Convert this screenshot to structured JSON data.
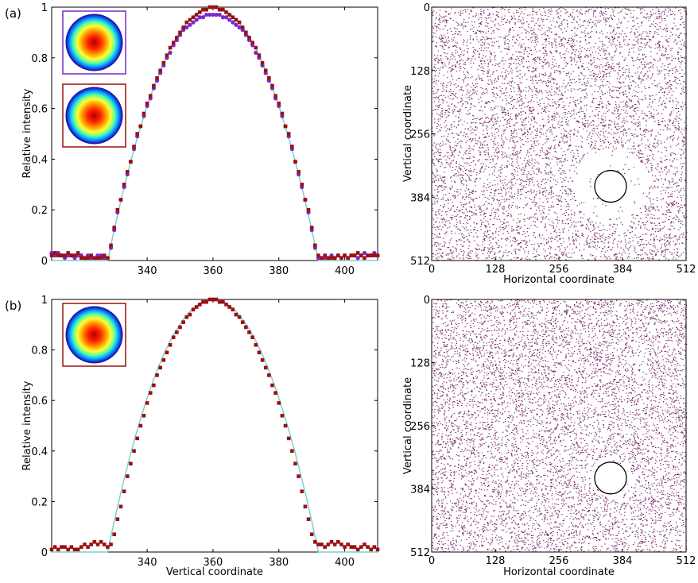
{
  "figure": {
    "panel_labels": [
      "(a)",
      "(b)"
    ]
  },
  "colors": {
    "fit_line": "#7fd0cc",
    "series_square": "#9c1010",
    "series_circle": "#7a28c8",
    "inset_frame_a1": "#7a28c8",
    "inset_frame_red": "#9c1010",
    "speckle": "#7a2a6e"
  },
  "chart_data": [
    {
      "id": "profile-a",
      "type": "scatter",
      "panel": "(a)",
      "xlabel": "",
      "ylabel": "Relative intensity",
      "xlim": [
        311,
        410
      ],
      "ylim": [
        0,
        1
      ],
      "xticks": [
        340,
        360,
        380,
        400
      ],
      "yticks": [
        0,
        0.2,
        0.4,
        0.6,
        0.8,
        1
      ],
      "fit": {
        "type": "line",
        "center": 360,
        "half_width": 32,
        "peak": 1.0
      },
      "series": [
        {
          "marker": "square",
          "color": "#9c1010",
          "x": [
            311,
            312,
            313,
            314,
            315,
            316,
            317,
            318,
            319,
            320,
            321,
            322,
            323,
            324,
            325,
            326,
            327,
            328,
            329,
            330,
            331,
            332,
            333,
            334,
            335,
            336,
            337,
            338,
            339,
            340,
            341,
            342,
            343,
            344,
            345,
            346,
            347,
            348,
            349,
            350,
            351,
            352,
            353,
            354,
            355,
            356,
            357,
            358,
            359,
            360,
            361,
            362,
            363,
            364,
            365,
            366,
            367,
            368,
            369,
            370,
            371,
            372,
            373,
            374,
            375,
            376,
            377,
            378,
            379,
            380,
            381,
            382,
            383,
            384,
            385,
            386,
            387,
            388,
            389,
            390,
            391,
            392,
            393,
            394,
            395,
            396,
            397,
            398,
            399,
            400,
            401,
            402,
            403,
            404,
            405,
            406,
            407,
            408,
            409,
            410
          ],
          "y": [
            0.02,
            0.03,
            0.02,
            0.02,
            0.02,
            0.03,
            0.02,
            0.02,
            0.03,
            0.01,
            0.01,
            0.01,
            0.02,
            0.01,
            0.01,
            0.01,
            0.02,
            0.01,
            0.06,
            0.13,
            0.2,
            0.24,
            0.3,
            0.35,
            0.39,
            0.45,
            0.5,
            0.53,
            0.58,
            0.62,
            0.65,
            0.69,
            0.72,
            0.75,
            0.78,
            0.81,
            0.84,
            0.86,
            0.88,
            0.9,
            0.92,
            0.94,
            0.95,
            0.96,
            0.97,
            0.98,
            0.99,
            0.99,
            1.0,
            1.0,
            1.0,
            0.99,
            0.99,
            0.98,
            0.97,
            0.96,
            0.95,
            0.94,
            0.92,
            0.9,
            0.88,
            0.86,
            0.84,
            0.81,
            0.78,
            0.75,
            0.72,
            0.69,
            0.65,
            0.62,
            0.58,
            0.53,
            0.5,
            0.45,
            0.39,
            0.35,
            0.3,
            0.24,
            0.2,
            0.13,
            0.06,
            0.02,
            0.01,
            0.02,
            0.01,
            0.01,
            0.01,
            0.02,
            0.01,
            0.02,
            0.01,
            0.02,
            0.02,
            0.03,
            0.02,
            0.01,
            0.02,
            0.02,
            0.02,
            0.02
          ]
        },
        {
          "marker": "circle",
          "color": "#7a28c8",
          "x": [
            311,
            312,
            313,
            314,
            315,
            316,
            317,
            318,
            319,
            320,
            321,
            322,
            323,
            324,
            325,
            326,
            327,
            328,
            329,
            330,
            331,
            332,
            333,
            334,
            335,
            336,
            337,
            338,
            339,
            340,
            341,
            342,
            343,
            344,
            345,
            346,
            347,
            348,
            349,
            350,
            351,
            352,
            353,
            354,
            355,
            356,
            357,
            358,
            359,
            360,
            361,
            362,
            363,
            364,
            365,
            366,
            367,
            368,
            369,
            370,
            371,
            372,
            373,
            374,
            375,
            376,
            377,
            378,
            379,
            380,
            381,
            382,
            383,
            384,
            385,
            386,
            387,
            388,
            389,
            390,
            391,
            392,
            393,
            394,
            395,
            396,
            397,
            398,
            399,
            400,
            401,
            402,
            403,
            404,
            405,
            406,
            407,
            408,
            409,
            410
          ],
          "y": [
            0.03,
            0.02,
            0.03,
            0.02,
            0.01,
            0.02,
            0.02,
            0.01,
            0.02,
            0.02,
            0.01,
            0.02,
            0.01,
            0.01,
            0.02,
            0.02,
            0.01,
            0.01,
            0.05,
            0.12,
            0.19,
            0.24,
            0.29,
            0.34,
            0.39,
            0.44,
            0.49,
            0.53,
            0.57,
            0.61,
            0.64,
            0.68,
            0.71,
            0.74,
            0.77,
            0.8,
            0.82,
            0.85,
            0.87,
            0.89,
            0.91,
            0.92,
            0.93,
            0.94,
            0.95,
            0.96,
            0.96,
            0.97,
            0.97,
            0.97,
            0.97,
            0.97,
            0.96,
            0.96,
            0.95,
            0.94,
            0.93,
            0.92,
            0.91,
            0.89,
            0.87,
            0.85,
            0.82,
            0.8,
            0.77,
            0.74,
            0.71,
            0.68,
            0.64,
            0.61,
            0.57,
            0.53,
            0.49,
            0.44,
            0.39,
            0.34,
            0.29,
            0.24,
            0.19,
            0.12,
            0.05,
            0.01,
            0.01,
            0.01,
            0.01,
            0.02,
            0.01,
            0.02,
            0.01,
            0.02,
            0.01,
            0.02,
            0.02,
            0.01,
            0.02,
            0.03,
            0.02,
            0.02,
            0.03,
            0.02
          ]
        }
      ]
    },
    {
      "id": "profile-b",
      "type": "scatter",
      "panel": "(b)",
      "xlabel": "Vertical coordinate",
      "ylabel": "Relative intensity",
      "xlim": [
        311,
        410
      ],
      "ylim": [
        0,
        1
      ],
      "xticks": [
        340,
        360,
        380,
        400
      ],
      "yticks": [
        0,
        0.2,
        0.4,
        0.6,
        0.8,
        1
      ],
      "fit": {
        "type": "line",
        "center": 360,
        "half_width": 32,
        "peak": 1.0
      },
      "series": [
        {
          "marker": "square",
          "color": "#9c1010",
          "x": [
            311,
            312,
            313,
            314,
            315,
            316,
            317,
            318,
            319,
            320,
            321,
            322,
            323,
            324,
            325,
            326,
            327,
            328,
            329,
            330,
            331,
            332,
            333,
            334,
            335,
            336,
            337,
            338,
            339,
            340,
            341,
            342,
            343,
            344,
            345,
            346,
            347,
            348,
            349,
            350,
            351,
            352,
            353,
            354,
            355,
            356,
            357,
            358,
            359,
            360,
            361,
            362,
            363,
            364,
            365,
            366,
            367,
            368,
            369,
            370,
            371,
            372,
            373,
            374,
            375,
            376,
            377,
            378,
            379,
            380,
            381,
            382,
            383,
            384,
            385,
            386,
            387,
            388,
            389,
            390,
            391,
            392,
            393,
            394,
            395,
            396,
            397,
            398,
            399,
            400,
            401,
            402,
            403,
            404,
            405,
            406,
            407,
            408,
            409,
            410
          ],
          "y": [
            0.01,
            0.02,
            0.01,
            0.02,
            0.02,
            0.01,
            0.02,
            0.01,
            0.01,
            0.02,
            0.03,
            0.02,
            0.03,
            0.04,
            0.03,
            0.04,
            0.03,
            0.02,
            0.03,
            0.07,
            0.13,
            0.18,
            0.24,
            0.3,
            0.35,
            0.4,
            0.45,
            0.5,
            0.54,
            0.59,
            0.63,
            0.66,
            0.7,
            0.73,
            0.76,
            0.79,
            0.82,
            0.85,
            0.87,
            0.89,
            0.91,
            0.93,
            0.94,
            0.96,
            0.97,
            0.98,
            0.99,
            0.99,
            1.0,
            1.0,
            1.0,
            0.99,
            0.99,
            0.98,
            0.97,
            0.96,
            0.94,
            0.93,
            0.91,
            0.89,
            0.87,
            0.85,
            0.82,
            0.79,
            0.76,
            0.73,
            0.7,
            0.66,
            0.63,
            0.59,
            0.54,
            0.5,
            0.45,
            0.4,
            0.35,
            0.3,
            0.24,
            0.18,
            0.13,
            0.07,
            0.04,
            0.03,
            0.03,
            0.02,
            0.03,
            0.04,
            0.03,
            0.04,
            0.03,
            0.02,
            0.03,
            0.02,
            0.02,
            0.01,
            0.02,
            0.03,
            0.02,
            0.01,
            0.02,
            0.01
          ]
        }
      ]
    },
    {
      "id": "speckle-a",
      "type": "heatmap",
      "panel": "(a)",
      "xlabel": "Horizontal coordinate",
      "ylabel": "Vertical coordinate",
      "xlim": [
        0,
        512
      ],
      "ylim": [
        512,
        0
      ],
      "xticks": [
        0,
        128,
        256,
        384,
        512
      ],
      "yticks": [
        0,
        128,
        256,
        384,
        512
      ],
      "circle": {
        "cx": 360,
        "cy": 362,
        "r": 32
      }
    },
    {
      "id": "speckle-b",
      "type": "heatmap",
      "panel": "(b)",
      "xlabel": "Horizontal coordinate",
      "ylabel": "Vertical coordinate",
      "xlim": [
        0,
        512
      ],
      "ylim": [
        512,
        0
      ],
      "xticks": [
        0,
        128,
        256,
        384,
        512
      ],
      "yticks": [
        0,
        128,
        256,
        384,
        512
      ],
      "circle": {
        "cx": 360,
        "cy": 362,
        "r": 32
      }
    }
  ]
}
